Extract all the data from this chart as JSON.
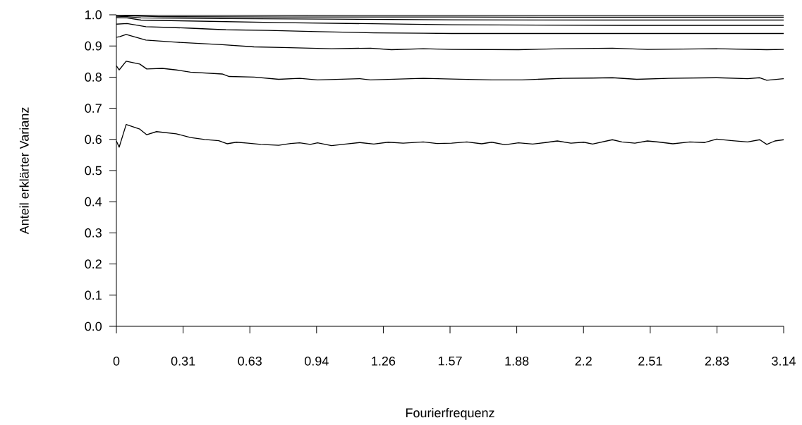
{
  "chart_data": {
    "type": "line",
    "xlabel": "Fourierfrequenz",
    "ylabel": "Anteil erklärter Varianz",
    "xlim": [
      0,
      3.14159
    ],
    "ylim": [
      0,
      1
    ],
    "xticks": [
      0,
      {
        "value": 0.31416,
        "label": "0.31"
      },
      {
        "value": 0.62832,
        "label": "0.63"
      },
      {
        "value": 0.94248,
        "label": "0.94"
      },
      {
        "value": 1.25664,
        "label": "1.26"
      },
      {
        "value": 1.5708,
        "label": "1.57"
      },
      {
        "value": 1.88496,
        "label": "1.88"
      },
      {
        "value": 2.19911,
        "label": "2.2"
      },
      {
        "value": 2.51327,
        "label": "2.51"
      },
      {
        "value": 2.82743,
        "label": "2.83"
      },
      {
        "value": 3.14159,
        "label": "3.14"
      }
    ],
    "yticks": [
      {
        "value": 0,
        "label": "0.0"
      },
      0.1,
      0.2,
      0.3,
      0.4,
      0.5,
      0.6,
      0.7,
      0.8,
      0.9,
      {
        "value": 1,
        "label": "1.0"
      }
    ],
    "series": [
      {
        "color": "#000000",
        "x": [
          0,
          0.013,
          0.046,
          0.11,
          0.143,
          0.189,
          0.282,
          0.349,
          0.415,
          0.482,
          0.521,
          0.565,
          0.62,
          0.68,
          0.764,
          0.82,
          0.863,
          0.913,
          0.947,
          1.013,
          1.08,
          1.146,
          1.212,
          1.28,
          1.35,
          1.445,
          1.51,
          1.578,
          1.65,
          1.72,
          1.767,
          1.83,
          1.893,
          1.96,
          2.02,
          2.076,
          2.14,
          2.2,
          2.242,
          2.335,
          2.38,
          2.441,
          2.5,
          2.56,
          2.62,
          2.7,
          2.77,
          2.826,
          2.9,
          2.972,
          3.029,
          3.062,
          3.1,
          3.14159
        ],
        "values": [
          0.595,
          0.575,
          0.648,
          0.633,
          0.615,
          0.625,
          0.618,
          0.606,
          0.6,
          0.596,
          0.586,
          0.591,
          0.588,
          0.584,
          0.581,
          0.587,
          0.589,
          0.584,
          0.589,
          0.58,
          0.585,
          0.59,
          0.585,
          0.591,
          0.588,
          0.592,
          0.587,
          0.588,
          0.592,
          0.586,
          0.591,
          0.583,
          0.589,
          0.585,
          0.59,
          0.595,
          0.588,
          0.591,
          0.585,
          0.599,
          0.592,
          0.588,
          0.595,
          0.591,
          0.586,
          0.592,
          0.59,
          0.601,
          0.596,
          0.592,
          0.599,
          0.584,
          0.595,
          0.599
        ]
      },
      {
        "color": "#000000",
        "x": [
          0,
          0.013,
          0.046,
          0.11,
          0.143,
          0.216,
          0.282,
          0.349,
          0.498,
          0.531,
          0.648,
          0.764,
          0.863,
          0.947,
          1.146,
          1.196,
          1.445,
          1.578,
          1.767,
          1.91,
          2.1,
          2.242,
          2.335,
          2.45,
          2.6,
          2.826,
          2.972,
          3.029,
          3.062,
          3.14159
        ],
        "values": [
          0.836,
          0.823,
          0.851,
          0.842,
          0.826,
          0.828,
          0.823,
          0.816,
          0.81,
          0.802,
          0.8,
          0.793,
          0.796,
          0.791,
          0.795,
          0.791,
          0.796,
          0.794,
          0.791,
          0.791,
          0.796,
          0.797,
          0.798,
          0.793,
          0.796,
          0.798,
          0.795,
          0.798,
          0.79,
          0.795
        ]
      },
      {
        "color": "#000000",
        "x": [
          0,
          0.017,
          0.046,
          0.139,
          0.282,
          0.498,
          0.648,
          0.78,
          1.013,
          1.196,
          1.295,
          1.445,
          1.578,
          1.893,
          2.1,
          2.335,
          2.5,
          2.826,
          3.062,
          3.14159
        ],
        "values": [
          0.928,
          0.93,
          0.937,
          0.919,
          0.912,
          0.904,
          0.897,
          0.895,
          0.891,
          0.893,
          0.888,
          0.891,
          0.889,
          0.888,
          0.891,
          0.893,
          0.889,
          0.891,
          0.888,
          0.889
        ]
      },
      {
        "color": "#000000",
        "x": [
          0,
          0.05,
          0.139,
          0.349,
          0.515,
          0.714,
          0.947,
          1.212,
          1.445,
          1.578,
          2.0,
          2.6,
          3.14159
        ],
        "values": [
          0.97,
          0.972,
          0.962,
          0.957,
          0.952,
          0.95,
          0.946,
          0.942,
          0.941,
          0.94,
          0.94,
          0.94,
          0.94
        ]
      },
      {
        "color": "#000000",
        "x": [
          0,
          0.05,
          0.116,
          0.78,
          1.578,
          2.4,
          3.14159
        ],
        "values": [
          0.991,
          0.99,
          0.983,
          0.975,
          0.968,
          0.966,
          0.966
        ]
      },
      {
        "color": "#000000",
        "x": [
          0,
          0.05,
          0.116,
          0.5,
          1.0,
          1.578,
          2.3,
          3.14159
        ],
        "values": [
          0.995,
          0.994,
          0.99,
          0.988,
          0.986,
          0.984,
          0.983,
          0.983
        ]
      },
      {
        "color": "#000000",
        "x": [
          0,
          0.05,
          0.2,
          0.8,
          1.578,
          2.4,
          3.14159
        ],
        "values": [
          0.998,
          0.997,
          0.994,
          0.993,
          0.993,
          0.992,
          0.992
        ]
      },
      {
        "color": "#000000",
        "x": [
          0,
          0.05,
          0.5,
          1.2,
          2.0,
          2.7,
          3.14159
        ],
        "values": [
          1.0,
          0.999,
          0.999,
          0.998,
          0.998,
          0.998,
          0.998
        ]
      }
    ]
  }
}
